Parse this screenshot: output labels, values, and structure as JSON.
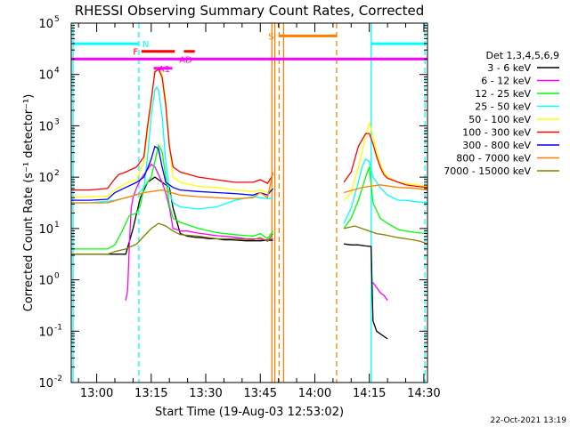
{
  "chart_data": {
    "type": "line",
    "title": "RHESSI Observing Summary Count Rates, Corrected",
    "xlabel": "Start Time (19-Aug-03 12:53:02)",
    "ylabel": "Corrected Count Rate (s⁻¹ detector⁻¹)",
    "x_unit": "minutes after 12:53:02",
    "xlim": [
      0,
      98
    ],
    "ylim_log10": [
      -2,
      5
    ],
    "y_scale": "log",
    "x_ticks": [
      {
        "pos": 7,
        "label": "13:00"
      },
      {
        "pos": 22,
        "label": "13:15"
      },
      {
        "pos": 37,
        "label": "13:30"
      },
      {
        "pos": 52,
        "label": "13:45"
      },
      {
        "pos": 67,
        "label": "14:00"
      },
      {
        "pos": 82,
        "label": "14:15"
      },
      {
        "pos": 97,
        "label": "14:30"
      }
    ],
    "y_ticks": [
      {
        "exp": -2,
        "label": "10",
        "sup": "-2"
      },
      {
        "exp": -1,
        "label": "10",
        "sup": "-1"
      },
      {
        "exp": 0,
        "label": "10",
        "sup": "0"
      },
      {
        "exp": 1,
        "label": "10",
        "sup": "1"
      },
      {
        "exp": 2,
        "label": "10",
        "sup": "2"
      },
      {
        "exp": 3,
        "label": "10",
        "sup": "3"
      },
      {
        "exp": 4,
        "label": "10",
        "sup": "4"
      },
      {
        "exp": 5,
        "label": "10",
        "sup": "5"
      }
    ],
    "legend_title": "Det 1,3,4,5,6,9",
    "legend_position": "right",
    "series": [
      {
        "name": "3 - 6 keV",
        "color": "#000000",
        "x": [
          0,
          10,
          13,
          15,
          17,
          19,
          21,
          23,
          25,
          27,
          28,
          30,
          32,
          34,
          36,
          38,
          40,
          42,
          44,
          46,
          48,
          50,
          52,
          54,
          55.5
        ],
        "y": [
          0.5,
          0.5,
          0.5,
          0.5,
          1.0,
          1.6,
          1.9,
          2.0,
          1.9,
          1.8,
          1.4,
          0.9,
          0.85,
          0.83,
          0.82,
          0.8,
          0.8,
          0.78,
          0.78,
          0.77,
          0.76,
          0.76,
          0.76,
          0.77,
          0.77
        ]
      },
      {
        "name": "3 - 6 keV",
        "color": "#000000",
        "x": [
          75,
          77,
          79,
          81,
          82.5,
          83,
          84,
          85,
          86,
          87
        ],
        "y": [
          0.7,
          0.68,
          0.68,
          0.66,
          0.65,
          -0.8,
          -1.0,
          -1.05,
          -1.1,
          -1.15
        ]
      },
      {
        "name": "6 - 12 keV",
        "color": "#ff00ff",
        "x": [
          15,
          15.5,
          16,
          16.5,
          17,
          18,
          19,
          20,
          21,
          22,
          23,
          24,
          25,
          26,
          27,
          28,
          29,
          30,
          32,
          34,
          36,
          38,
          40,
          42,
          44,
          46,
          48,
          50,
          52,
          54,
          55.5
        ],
        "y": [
          -0.4,
          -0.2,
          0.7,
          1.4,
          1.6,
          1.8,
          1.95,
          2.05,
          2.15,
          2.25,
          2.2,
          2.05,
          1.9,
          1.7,
          1.4,
          1.0,
          0.98,
          0.95,
          0.95,
          0.92,
          0.9,
          0.88,
          0.86,
          0.85,
          0.84,
          0.82,
          0.8,
          0.8,
          0.79,
          0.78,
          0.8
        ]
      },
      {
        "name": "6 - 12 keV",
        "color": "#ff00ff",
        "x": [
          83,
          84,
          85,
          86,
          87
        ],
        "y": [
          -0.05,
          -0.15,
          -0.25,
          -0.3,
          -0.4
        ]
      },
      {
        "name": "12 - 25 keV",
        "color": "#00ff00",
        "x": [
          0,
          5,
          10,
          12,
          14,
          16,
          18,
          19,
          20,
          22,
          23,
          24,
          25,
          26,
          27,
          28,
          30,
          35,
          40,
          45,
          50,
          52,
          54,
          55.5
        ],
        "y": [
          0.6,
          0.6,
          0.6,
          0.68,
          0.95,
          1.25,
          1.3,
          1.45,
          1.8,
          2.0,
          2.3,
          2.62,
          2.5,
          2.0,
          1.45,
          1.2,
          1.12,
          1.0,
          0.92,
          0.88,
          0.85,
          0.9,
          0.8,
          0.95
        ]
      },
      {
        "name": "12 - 25 keV",
        "color": "#00ff00",
        "x": [
          75,
          77,
          79,
          81,
          82,
          83,
          85,
          87,
          90,
          92,
          95,
          98
        ],
        "y": [
          1.0,
          1.2,
          1.55,
          2.0,
          2.2,
          1.5,
          1.2,
          1.1,
          0.98,
          0.95,
          0.92,
          0.9
        ]
      },
      {
        "name": "25 - 50 keV",
        "color": "#00ffff",
        "x": [
          0,
          5,
          10,
          12,
          15,
          18,
          20,
          21,
          22,
          23,
          23.5,
          24,
          25,
          26,
          27,
          28,
          30,
          35,
          40,
          45,
          50,
          52,
          54,
          55.5
        ],
        "y": [
          1.5,
          1.5,
          1.53,
          1.55,
          1.6,
          1.65,
          1.8,
          2.4,
          3.2,
          3.7,
          3.75,
          3.7,
          3.2,
          2.3,
          1.7,
          1.5,
          1.42,
          1.38,
          1.42,
          1.55,
          1.62,
          1.6,
          1.58,
          1.6
        ]
      },
      {
        "name": "25 - 50 keV",
        "color": "#00ffff",
        "x": [
          75,
          77,
          79,
          80,
          81,
          82,
          83,
          85,
          87,
          90,
          92,
          95,
          98
        ],
        "y": [
          1.1,
          1.4,
          1.9,
          2.2,
          2.35,
          2.3,
          2.0,
          1.8,
          1.65,
          1.55,
          1.55,
          1.52,
          1.5
        ]
      },
      {
        "name": "50 - 100 keV",
        "color": "#ffff00",
        "x": [
          0,
          5,
          10,
          12,
          15,
          18,
          20,
          21,
          22,
          23,
          24,
          25,
          26,
          27,
          28,
          30,
          35,
          40,
          45,
          50,
          52,
          54,
          55.5
        ],
        "y": [
          1.6,
          1.62,
          1.63,
          1.75,
          1.88,
          1.95,
          2.3,
          2.9,
          3.45,
          4.1,
          4.15,
          4.0,
          3.5,
          2.6,
          2.0,
          1.9,
          1.82,
          1.8,
          1.75,
          1.72,
          1.75,
          1.7,
          1.8
        ]
      },
      {
        "name": "50 - 100 keV",
        "color": "#ffff00",
        "x": [
          75,
          77,
          79,
          81,
          82,
          83,
          84,
          85,
          86,
          87,
          90,
          92,
          95,
          98
        ],
        "y": [
          1.55,
          1.7,
          2.2,
          2.8,
          3.05,
          2.8,
          2.5,
          2.25,
          2.1,
          2.0,
          1.9,
          1.88,
          1.85,
          1.82
        ]
      },
      {
        "name": "100 - 300 keV",
        "color": "#ff0000",
        "x": [
          0,
          5,
          10,
          12,
          13,
          15,
          18,
          20,
          21,
          22,
          23,
          24,
          25,
          26,
          27,
          28,
          30,
          35,
          40,
          45,
          50,
          52,
          54,
          55.5
        ],
        "y": [
          1.75,
          1.75,
          1.78,
          1.97,
          2.05,
          2.1,
          2.2,
          2.4,
          3.0,
          3.5,
          4.05,
          4.1,
          3.95,
          3.4,
          2.6,
          2.2,
          2.1,
          2.0,
          1.95,
          1.9,
          1.9,
          1.95,
          1.88,
          2.05
        ]
      },
      {
        "name": "100 - 300 keV",
        "color": "#ff0000",
        "x": [
          75,
          77,
          79,
          81,
          82,
          83,
          84,
          85,
          86,
          87,
          90,
          92,
          95,
          98
        ],
        "y": [
          1.9,
          2.1,
          2.6,
          2.85,
          2.85,
          2.65,
          2.4,
          2.2,
          2.05,
          1.98,
          1.9,
          1.85,
          1.82,
          1.8
        ]
      },
      {
        "name": "300 - 800 keV",
        "color": "#0000ff",
        "x": [
          0,
          5,
          10,
          12,
          15,
          18,
          20,
          22,
          23,
          24,
          25,
          26,
          27,
          28,
          30,
          35,
          40,
          45,
          50,
          52,
          54,
          55.5
        ],
        "y": [
          1.55,
          1.55,
          1.57,
          1.7,
          1.8,
          1.9,
          2.0,
          2.35,
          2.6,
          2.55,
          2.2,
          1.9,
          1.85,
          1.8,
          1.75,
          1.72,
          1.7,
          1.68,
          1.65,
          1.7,
          1.65,
          1.78
        ]
      },
      {
        "name": "800 - 7000 keV",
        "color": "#ff8000",
        "x": [
          0,
          10,
          15,
          20,
          25,
          30,
          35,
          40,
          45,
          50,
          52,
          54,
          55.5
        ],
        "y": [
          1.5,
          1.5,
          1.6,
          1.7,
          1.75,
          1.65,
          1.62,
          1.6,
          1.58,
          1.6,
          1.7,
          1.6,
          2.1
        ]
      },
      {
        "name": "800 - 7000 keV",
        "color": "#ff8000",
        "x": [
          75,
          80,
          85,
          90,
          95,
          98
        ],
        "y": [
          1.7,
          1.8,
          1.85,
          1.8,
          1.78,
          1.75
        ]
      },
      {
        "name": "7000 - 15000 keV",
        "color": "#808000",
        "x": [
          0,
          5,
          10,
          12,
          15,
          18,
          20,
          22,
          24,
          26,
          28,
          30,
          35,
          40,
          45,
          50,
          52,
          54,
          55.5
        ],
        "y": [
          0.5,
          0.5,
          0.5,
          0.55,
          0.6,
          0.7,
          0.85,
          1.0,
          1.1,
          1.05,
          0.95,
          0.88,
          0.85,
          0.8,
          0.8,
          0.78,
          0.82,
          0.75,
          0.9
        ]
      },
      {
        "name": "7000 - 15000 keV",
        "color": "#808000",
        "x": [
          75,
          78,
          80,
          82,
          84,
          86,
          88,
          90,
          92,
          94,
          96,
          98
        ],
        "y": [
          1.0,
          1.05,
          1.0,
          0.95,
          0.9,
          0.88,
          0.85,
          0.82,
          0.8,
          0.78,
          0.75,
          0.7
        ]
      }
    ],
    "vlines": [
      {
        "x": 0.5,
        "color": "#00ffff",
        "style": "solid"
      },
      {
        "x": 18.6,
        "color": "#00ffff",
        "style": "dashed"
      },
      {
        "x": 55.2,
        "color": "#ff8000",
        "style": "solid"
      },
      {
        "x": 56.0,
        "color": "#ff8000",
        "style": "solid"
      },
      {
        "x": 57.2,
        "color": "#ff8000",
        "style": "dashed"
      },
      {
        "x": 58.4,
        "color": "#ff8000",
        "style": "solid"
      },
      {
        "x": 73.0,
        "color": "#ff8000",
        "style": "dashed"
      },
      {
        "x": 82.5,
        "color": "#00ffff",
        "style": "solid"
      },
      {
        "x": 97.3,
        "color": "#00ffff",
        "style": "dashed"
      }
    ],
    "flag_bars": [
      {
        "label": "N",
        "color": "#00ffff",
        "y": 4.6,
        "segments": [
          [
            0.5,
            18.4
          ],
          [
            82.5,
            97.6
          ]
        ],
        "label_x": 20.5
      },
      {
        "label": "F",
        "color": "#ff0000",
        "y": 4.45,
        "segments": [
          [
            19.3,
            28.5
          ],
          [
            31.0,
            34.0
          ]
        ],
        "label_x": 17.7
      },
      {
        "label": "AD",
        "color": "#ff00ff",
        "y": 4.3,
        "segments": [],
        "label_x": 31.5
      },
      {
        "label": "A1",
        "color": "#ff00ff",
        "y": 4.12,
        "segments": [
          [
            22.7,
            27.8
          ]
        ],
        "label_x": 25.6
      },
      {
        "label": "",
        "color": "#ff00ff",
        "y": 4.3,
        "segments": [
          [
            0,
            98
          ]
        ],
        "label_x": 0
      },
      {
        "label": "S",
        "color": "#ff8000",
        "y": 4.75,
        "segments": [
          [
            57.3,
            73.0
          ]
        ],
        "label_x": 55.0
      }
    ],
    "timestamp": "22-Oct-2021 13:19"
  }
}
